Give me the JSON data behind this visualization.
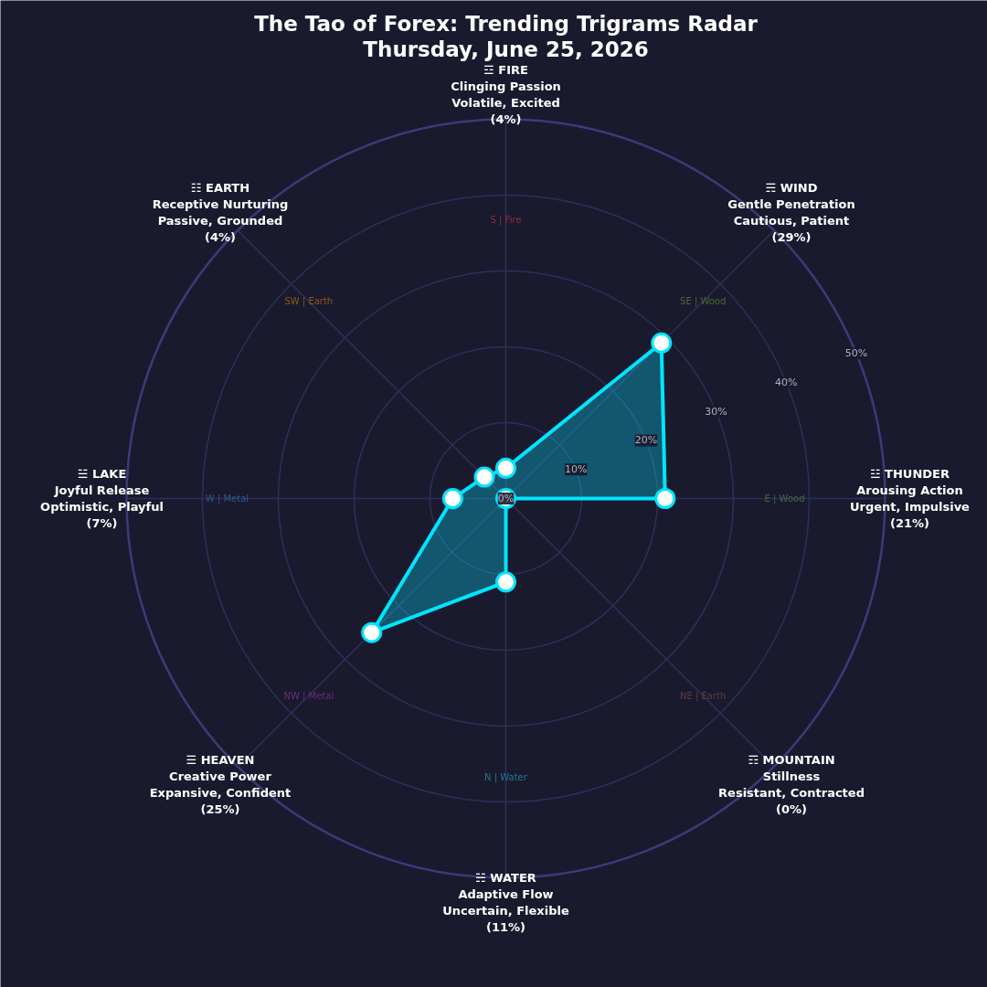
{
  "chart_data": {
    "type": "radar",
    "title": "The Tao of Forex: Trending Trigrams Radar",
    "subtitle": "Thursday, June 25, 2026",
    "categories": [
      "☲ FIRE\nClinging Passion\nVolatile, Excited\n(4%)",
      "☴ WIND\nGentle Penetration\nCautious, Patient\n(29%)",
      "☳ THUNDER\nArousing Action\nUrgent, Impulsive\n(21%)",
      "☶ MOUNTAIN\nStillness\nResistant, Contracted\n(0%)",
      "☵ WATER\nAdaptive Flow\nUncertain, Flexible\n(11%)",
      "☰ HEAVEN\nCreative Power\nExpansive, Confident\n(25%)",
      "☱ LAKE\nJoyful Release\nOptimistic, Playful\n(7%)",
      "☷ EARTH\nReceptive Nurturing\nPassive, Grounded\n(4%)"
    ],
    "series": [
      {
        "color": "#00e5ff",
        "values": [
          4,
          29,
          21,
          0,
          11,
          25,
          7,
          4
        ]
      }
    ],
    "ylim": [
      0,
      50
    ],
    "yticks": [
      {
        "value": 0,
        "label": "0%"
      },
      {
        "value": 10,
        "label": "10%"
      },
      {
        "value": 20,
        "label": "20%"
      },
      {
        "value": 30,
        "label": "30%"
      },
      {
        "value": 40,
        "label": "40%"
      },
      {
        "value": 50,
        "label": "50%"
      }
    ],
    "grid": true,
    "marker": "circle",
    "line_style": "solid",
    "annotations": [
      "S | Fire",
      "SE | Wood",
      "E | Wood",
      "NE | Earth",
      "N | Water",
      "NW | Metal",
      "W | Metal",
      "SW | Earth"
    ]
  }
}
